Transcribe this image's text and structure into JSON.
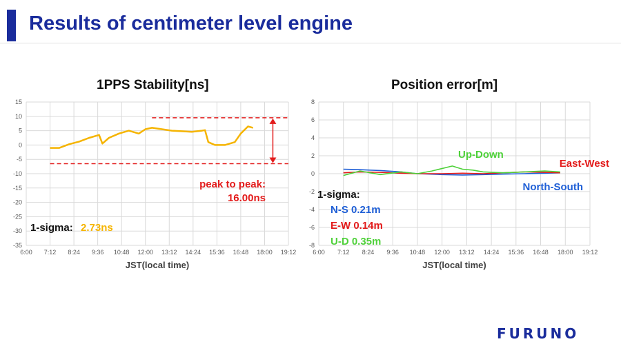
{
  "slide": {
    "title": "Results of centimeter level engine",
    "logo": "FURUNO"
  },
  "colors": {
    "title_blue": "#1a2c9c",
    "pps_series": "#f5b400",
    "peak_red": "#e31b1b",
    "north_south": "#1f5fd6",
    "east_west": "#e31b1b",
    "up_down": "#4fd13a"
  },
  "chart_data": [
    {
      "type": "line",
      "title": "1PPS Stability[ns]",
      "xlabel": "JST(local time)",
      "ylabel": "",
      "xlim": [
        "6:00",
        "19:12"
      ],
      "x_ticks": [
        "6:00",
        "7:12",
        "8:24",
        "9:36",
        "10:48",
        "12:00",
        "13:12",
        "14:24",
        "15:36",
        "16:48",
        "18:00",
        "19:12"
      ],
      "ylim": [
        -35,
        15
      ],
      "y_ticks": [
        15,
        10,
        5,
        0,
        -5,
        -10,
        -15,
        -20,
        -25,
        -30,
        -35
      ],
      "grid": true,
      "series": [
        {
          "x": [
            "7:12",
            "7:40",
            "8:10",
            "8:40",
            "9:10",
            "9:40",
            "9:50",
            "10:10",
            "10:40",
            "11:10",
            "11:40",
            "12:00",
            "12:20",
            "12:50",
            "13:20",
            "13:50",
            "14:20",
            "14:50",
            "15:00",
            "15:10",
            "15:30",
            "16:00",
            "16:30",
            "16:48",
            "17:10",
            "17:25"
          ],
          "values": [
            -1,
            -1,
            0.3,
            1.2,
            2.5,
            3.5,
            0.5,
            2.5,
            4,
            5,
            4,
            5.5,
            6,
            5.5,
            5,
            4.8,
            4.6,
            5,
            5.2,
            1,
            0,
            0,
            1,
            4,
            6.5,
            6
          ]
        }
      ],
      "reference_lines": {
        "upper": 9.5,
        "lower": -6.5
      },
      "annotations": {
        "peak_label_1": "peak to peak:",
        "peak_label_2": "16.00ns",
        "sigma_label": "1-sigma:",
        "sigma_value": "2.73ns"
      }
    },
    {
      "type": "line",
      "title": "Position error[m]",
      "xlabel": "JST(local time)",
      "ylabel": "",
      "xlim": [
        "6:00",
        "19:12"
      ],
      "x_ticks": [
        "6:00",
        "7:12",
        "8:24",
        "9:36",
        "10:48",
        "12:00",
        "13:12",
        "14:24",
        "15:36",
        "16:48",
        "18:00",
        "19:12"
      ],
      "ylim": [
        -8,
        8
      ],
      "y_ticks": [
        8,
        6,
        4,
        2,
        0,
        -2,
        -4,
        -6,
        -8
      ],
      "grid": true,
      "series": [
        {
          "name": "North-South",
          "x": [
            "7:12",
            "8:00",
            "9:00",
            "10:00",
            "10:48",
            "12:00",
            "13:00",
            "14:00",
            "15:00",
            "16:00",
            "17:00",
            "17:45"
          ],
          "values": [
            0.5,
            0.45,
            0.35,
            0.2,
            0.0,
            -0.1,
            -0.15,
            -0.1,
            -0.05,
            0.0,
            0.05,
            0.1
          ]
        },
        {
          "name": "East-West",
          "x": [
            "7:12",
            "8:00",
            "9:00",
            "10:00",
            "10:48",
            "12:00",
            "13:00",
            "14:00",
            "15:00",
            "16:00",
            "17:00",
            "17:45"
          ],
          "values": [
            0.1,
            0.2,
            0.15,
            0.05,
            0.0,
            0.0,
            0.05,
            0.0,
            0.1,
            0.2,
            0.15,
            0.1
          ]
        },
        {
          "name": "Up-Down",
          "x": [
            "7:12",
            "8:00",
            "9:00",
            "10:00",
            "10:48",
            "11:30",
            "12:30",
            "13:00",
            "13:30",
            "14:00",
            "15:00",
            "16:00",
            "17:00",
            "17:45"
          ],
          "values": [
            -0.2,
            0.3,
            -0.1,
            0.2,
            0.0,
            0.3,
            0.85,
            0.5,
            0.4,
            0.2,
            0.1,
            0.2,
            0.3,
            0.2
          ]
        }
      ],
      "annotations": {
        "sigma_label": "1-sigma:",
        "ns": "N-S 0.21m",
        "ew": "E-W 0.14m",
        "ud": "U-D 0.35m"
      }
    }
  ]
}
